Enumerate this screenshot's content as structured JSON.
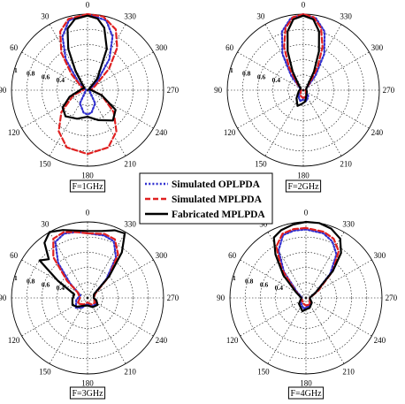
{
  "chart_data": [
    {
      "type": "polar",
      "caption": "F=1GHz",
      "angle_ticks": [
        "0",
        "30",
        "60",
        "90",
        "120",
        "150",
        "180",
        "210",
        "240",
        "270",
        "300",
        "330"
      ],
      "radial_ticks": [
        "1",
        "0.8",
        "0.6",
        "0.4"
      ],
      "rlim": [
        0,
        1
      ],
      "grid": true,
      "series": [
        {
          "key": "opl",
          "values": [
            [
              0,
              1
            ],
            [
              15,
              0.95
            ],
            [
              25,
              0.78
            ],
            [
              35,
              0.5
            ],
            [
              50,
              0.15
            ],
            [
              80,
              0.02
            ],
            [
              150,
              0.2
            ],
            [
              170,
              0.3
            ],
            [
              180,
              0.32
            ],
            [
              190,
              0.3
            ],
            [
              210,
              0.2
            ],
            [
              280,
              0.02
            ],
            [
              310,
              0.15
            ],
            [
              325,
              0.5
            ],
            [
              335,
              0.78
            ],
            [
              345,
              0.95
            ],
            [
              360,
              1
            ]
          ]
        },
        {
          "key": "mpl_sim",
          "values": [
            [
              0,
              1
            ],
            [
              15,
              0.97
            ],
            [
              25,
              0.85
            ],
            [
              35,
              0.6
            ],
            [
              45,
              0.3
            ],
            [
              60,
              0.1
            ],
            [
              85,
              0.05
            ],
            [
              110,
              0.2
            ],
            [
              130,
              0.45
            ],
            [
              145,
              0.66
            ],
            [
              160,
              0.8
            ],
            [
              180,
              0.84
            ],
            [
              200,
              0.8
            ],
            [
              215,
              0.66
            ],
            [
              230,
              0.45
            ],
            [
              250,
              0.2
            ],
            [
              275,
              0.05
            ],
            [
              300,
              0.12
            ],
            [
              315,
              0.4
            ],
            [
              325,
              0.68
            ],
            [
              335,
              0.88
            ],
            [
              348,
              0.99
            ],
            [
              360,
              1
            ]
          ]
        },
        {
          "key": "mpl_fab",
          "values": [
            [
              0,
              0.98
            ],
            [
              10,
              0.95
            ],
            [
              18,
              0.85
            ],
            [
              25,
              0.6
            ],
            [
              32,
              0.3
            ],
            [
              40,
              0.12
            ],
            [
              55,
              0.05
            ],
            [
              80,
              0.08
            ],
            [
              110,
              0.25
            ],
            [
              125,
              0.4
            ],
            [
              140,
              0.45
            ],
            [
              160,
              0.4
            ],
            [
              180,
              0.35
            ],
            [
              200,
              0.42
            ],
            [
              220,
              0.52
            ],
            [
              235,
              0.45
            ],
            [
              250,
              0.2
            ],
            [
              270,
              0.05
            ],
            [
              300,
              0.02
            ],
            [
              320,
              0.2
            ],
            [
              335,
              0.6
            ],
            [
              345,
              0.85
            ],
            [
              352,
              0.95
            ],
            [
              360,
              0.98
            ]
          ]
        }
      ]
    },
    {
      "type": "polar",
      "caption": "F=2GHz",
      "angle_ticks": [
        "0",
        "30",
        "60",
        "90",
        "120",
        "150",
        "180",
        "210",
        "240",
        "270",
        "300",
        "330"
      ],
      "radial_ticks": [
        "1",
        "0.8",
        "0.6",
        "0.4"
      ],
      "rlim": [
        0,
        1
      ],
      "grid": true,
      "series": [
        {
          "key": "opl",
          "values": [
            [
              0,
              1
            ],
            [
              10,
              0.96
            ],
            [
              20,
              0.82
            ],
            [
              30,
              0.55
            ],
            [
              40,
              0.25
            ],
            [
              55,
              0.06
            ],
            [
              90,
              0.03
            ],
            [
              140,
              0.1
            ],
            [
              165,
              0.15
            ],
            [
              180,
              0.12
            ],
            [
              195,
              0.15
            ],
            [
              220,
              0.1
            ],
            [
              270,
              0.03
            ],
            [
              305,
              0.06
            ],
            [
              320,
              0.25
            ],
            [
              330,
              0.55
            ],
            [
              340,
              0.82
            ],
            [
              350,
              0.96
            ],
            [
              360,
              1
            ]
          ]
        },
        {
          "key": "mpl_sim",
          "values": [
            [
              0,
              1
            ],
            [
              8,
              0.97
            ],
            [
              16,
              0.85
            ],
            [
              24,
              0.62
            ],
            [
              32,
              0.35
            ],
            [
              42,
              0.12
            ],
            [
              60,
              0.04
            ],
            [
              90,
              0.03
            ],
            [
              150,
              0.08
            ],
            [
              175,
              0.1
            ],
            [
              185,
              0.1
            ],
            [
              210,
              0.08
            ],
            [
              270,
              0.03
            ],
            [
              300,
              0.04
            ],
            [
              318,
              0.12
            ],
            [
              328,
              0.35
            ],
            [
              336,
              0.62
            ],
            [
              344,
              0.85
            ],
            [
              352,
              0.97
            ],
            [
              360,
              1
            ]
          ]
        },
        {
          "key": "mpl_fab",
          "values": [
            [
              0,
              0.98
            ],
            [
              8,
              0.94
            ],
            [
              15,
              0.8
            ],
            [
              22,
              0.55
            ],
            [
              30,
              0.28
            ],
            [
              40,
              0.1
            ],
            [
              60,
              0.04
            ],
            [
              100,
              0.06
            ],
            [
              140,
              0.14
            ],
            [
              160,
              0.22
            ],
            [
              175,
              0.18
            ],
            [
              190,
              0.15
            ],
            [
              210,
              0.08
            ],
            [
              250,
              0.05
            ],
            [
              290,
              0.04
            ],
            [
              320,
              0.1
            ],
            [
              330,
              0.28
            ],
            [
              338,
              0.55
            ],
            [
              345,
              0.8
            ],
            [
              352,
              0.94
            ],
            [
              360,
              0.98
            ]
          ]
        }
      ]
    },
    {
      "type": "polar",
      "caption": "F=3GHz",
      "angle_ticks": [
        "0",
        "30",
        "60",
        "90",
        "120",
        "150",
        "180",
        "210",
        "240",
        "270",
        "300",
        "330"
      ],
      "radial_ticks": [
        "1",
        "0.8",
        "0.6",
        "0.4"
      ],
      "rlim": [
        0,
        1
      ],
      "grid": true,
      "series": [
        {
          "key": "opl",
          "values": [
            [
              0,
              0.85
            ],
            [
              10,
              0.88
            ],
            [
              20,
              0.9
            ],
            [
              30,
              0.85
            ],
            [
              40,
              0.6
            ],
            [
              50,
              0.3
            ],
            [
              70,
              0.1
            ],
            [
              100,
              0.15
            ],
            [
              130,
              0.2
            ],
            [
              150,
              0.15
            ],
            [
              180,
              0.08
            ],
            [
              210,
              0.12
            ],
            [
              240,
              0.15
            ],
            [
              270,
              0.08
            ],
            [
              300,
              0.1
            ],
            [
              315,
              0.35
            ],
            [
              325,
              0.65
            ],
            [
              335,
              0.82
            ],
            [
              345,
              0.85
            ],
            [
              360,
              0.85
            ]
          ]
        },
        {
          "key": "mpl_sim",
          "values": [
            [
              0,
              0.85
            ],
            [
              10,
              0.88
            ],
            [
              20,
              0.92
            ],
            [
              30,
              0.9
            ],
            [
              40,
              0.7
            ],
            [
              50,
              0.35
            ],
            [
              60,
              0.15
            ],
            [
              90,
              0.1
            ],
            [
              120,
              0.15
            ],
            [
              150,
              0.1
            ],
            [
              180,
              0.06
            ],
            [
              210,
              0.1
            ],
            [
              240,
              0.12
            ],
            [
              270,
              0.08
            ],
            [
              300,
              0.12
            ],
            [
              315,
              0.4
            ],
            [
              325,
              0.7
            ],
            [
              335,
              0.85
            ],
            [
              345,
              0.87
            ],
            [
              360,
              0.85
            ]
          ]
        },
        {
          "key": "mpl_fab",
          "values": [
            [
              0,
              0.88
            ],
            [
              10,
              0.9
            ],
            [
              20,
              0.95
            ],
            [
              30,
              1.0
            ],
            [
              38,
              0.92
            ],
            [
              45,
              0.72
            ],
            [
              52,
              0.8
            ],
            [
              60,
              0.45
            ],
            [
              75,
              0.18
            ],
            [
              95,
              0.2
            ],
            [
              115,
              0.22
            ],
            [
              130,
              0.18
            ],
            [
              150,
              0.12
            ],
            [
              180,
              0.1
            ],
            [
              210,
              0.14
            ],
            [
              235,
              0.16
            ],
            [
              255,
              0.12
            ],
            [
              270,
              0.08
            ],
            [
              300,
              0.1
            ],
            [
              315,
              0.4
            ],
            [
              323,
              0.75
            ],
            [
              330,
              0.98
            ],
            [
              338,
              0.96
            ],
            [
              348,
              0.9
            ],
            [
              360,
              0.88
            ]
          ]
        }
      ]
    },
    {
      "type": "polar",
      "caption": "F=4GHz",
      "angle_ticks": [
        "0",
        "30",
        "60",
        "90",
        "120",
        "150",
        "180",
        "210",
        "240",
        "270",
        "300",
        "330"
      ],
      "radial_ticks": [
        "1",
        "0.8",
        "0.6",
        "0.4"
      ],
      "rlim": [
        0,
        1
      ],
      "grid": true,
      "series": [
        {
          "key": "opl",
          "values": [
            [
              0,
              0.9
            ],
            [
              10,
              0.9
            ],
            [
              20,
              0.88
            ],
            [
              30,
              0.72
            ],
            [
              40,
              0.45
            ],
            [
              55,
              0.15
            ],
            [
              90,
              0.05
            ],
            [
              140,
              0.1
            ],
            [
              170,
              0.15
            ],
            [
              180,
              0.12
            ],
            [
              200,
              0.12
            ],
            [
              230,
              0.08
            ],
            [
              270,
              0.05
            ],
            [
              300,
              0.15
            ],
            [
              315,
              0.45
            ],
            [
              325,
              0.7
            ],
            [
              335,
              0.82
            ],
            [
              345,
              0.88
            ],
            [
              360,
              0.9
            ]
          ]
        },
        {
          "key": "mpl_sim",
          "values": [
            [
              0,
              0.92
            ],
            [
              10,
              0.92
            ],
            [
              20,
              0.9
            ],
            [
              30,
              0.78
            ],
            [
              40,
              0.5
            ],
            [
              55,
              0.18
            ],
            [
              90,
              0.06
            ],
            [
              150,
              0.08
            ],
            [
              180,
              0.1
            ],
            [
              210,
              0.1
            ],
            [
              270,
              0.05
            ],
            [
              300,
              0.18
            ],
            [
              315,
              0.5
            ],
            [
              325,
              0.75
            ],
            [
              335,
              0.86
            ],
            [
              345,
              0.9
            ],
            [
              360,
              0.92
            ]
          ]
        },
        {
          "key": "mpl_fab",
          "values": [
            [
              0,
              1.0
            ],
            [
              10,
              0.98
            ],
            [
              20,
              0.95
            ],
            [
              28,
              0.9
            ],
            [
              35,
              0.7
            ],
            [
              45,
              0.42
            ],
            [
              60,
              0.15
            ],
            [
              90,
              0.06
            ],
            [
              130,
              0.12
            ],
            [
              165,
              0.18
            ],
            [
              180,
              0.15
            ],
            [
              200,
              0.14
            ],
            [
              230,
              0.1
            ],
            [
              270,
              0.05
            ],
            [
              300,
              0.15
            ],
            [
              315,
              0.5
            ],
            [
              322,
              0.75
            ],
            [
              330,
              0.9
            ],
            [
              340,
              0.97
            ],
            [
              350,
              1.0
            ],
            [
              360,
              1.0
            ]
          ]
        }
      ]
    }
  ],
  "legend": {
    "items": [
      {
        "key": "opl",
        "label": "Simulated OPLPDA",
        "color": "#2f2fd0",
        "style": "dotted"
      },
      {
        "key": "mpl_sim",
        "label": "Simulated MPLPDA",
        "color": "#e02020",
        "style": "dashed"
      },
      {
        "key": "mpl_fab",
        "label": "Fabricated MPLPDA",
        "color": "#000000",
        "style": "solid"
      }
    ]
  }
}
